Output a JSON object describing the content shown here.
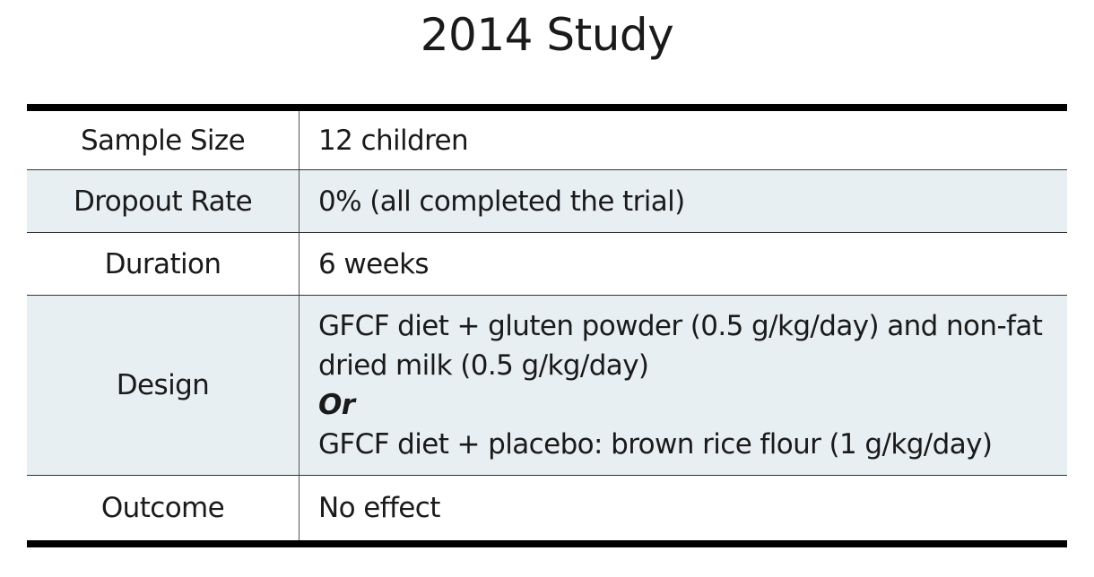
{
  "title": "2014 Study",
  "rows": [
    {
      "label": "Sample Size",
      "value": "12 children"
    },
    {
      "label": "Dropout Rate",
      "value": "0% (all completed the trial)"
    },
    {
      "label": "Duration",
      "value": "6 weeks"
    },
    {
      "label": "Design",
      "lines": [
        "GFCF diet + gluten powder (0.5 g/kg/day) and non-fat",
        "dried milk (0.5 g/kg/day)",
        "Or",
        "GFCF diet + placebo: brown rice flour (1 g/kg/day)"
      ]
    },
    {
      "label": "Outcome",
      "value": "No effect"
    }
  ],
  "colors": {
    "shaded_row": "#e8eff2",
    "rule": "#000000",
    "text": "#1a1a1a"
  }
}
